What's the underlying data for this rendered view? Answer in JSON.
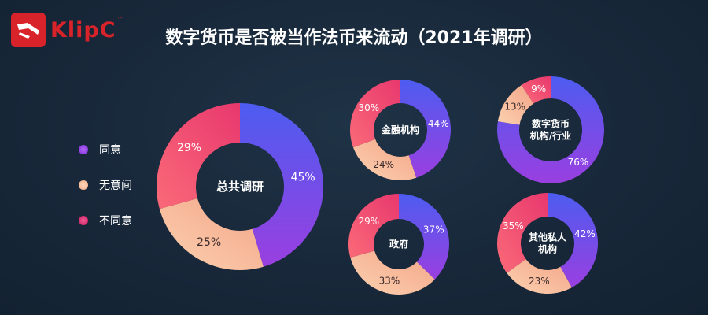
{
  "brand": {
    "name": "KlipC",
    "tm": "™"
  },
  "title": "数字货币是否被当作法币来流动（2021年调研）",
  "legend": [
    {
      "label": "同意",
      "color": "#8a3ce0"
    },
    {
      "label": "无意间",
      "color": "#f7b996"
    },
    {
      "label": "不同意",
      "color": "#e0387a"
    }
  ],
  "chart_data": [
    {
      "type": "pie",
      "title": "总共调研",
      "categories": [
        "同意",
        "无意间",
        "不同意"
      ],
      "values": [
        45,
        25,
        29
      ],
      "labels": [
        "45%",
        "25%",
        "29%"
      ]
    },
    {
      "type": "pie",
      "title": "金融机构",
      "categories": [
        "同意",
        "无意间",
        "不同意"
      ],
      "values": [
        44,
        24,
        30
      ],
      "labels": [
        "44%",
        "24%",
        "30%"
      ]
    },
    {
      "type": "pie",
      "title": "数字货币机构/行业",
      "categories": [
        "同意",
        "无意间",
        "不同意"
      ],
      "values": [
        76,
        13,
        9
      ],
      "labels": [
        "76%",
        "13%",
        "9%"
      ]
    },
    {
      "type": "pie",
      "title": "政府",
      "categories": [
        "同意",
        "无意间",
        "不同意"
      ],
      "values": [
        37,
        33,
        29
      ],
      "labels": [
        "37%",
        "33%",
        "29%"
      ]
    },
    {
      "type": "pie",
      "title": "其他私人机构",
      "categories": [
        "同意",
        "无意间",
        "不同意"
      ],
      "values": [
        42,
        23,
        35
      ],
      "labels": [
        "42%",
        "23%",
        "35%"
      ]
    }
  ]
}
